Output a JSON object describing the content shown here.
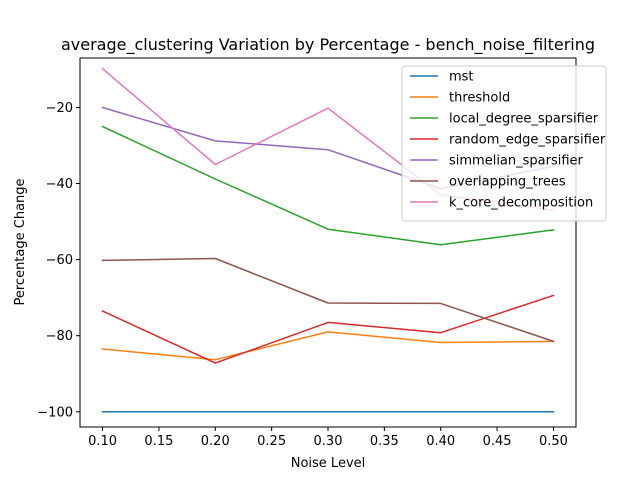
{
  "chart_data": {
    "type": "line",
    "title": "average_clustering Variation by Percentage - bench_noise_filtering",
    "xlabel": "Noise Level",
    "ylabel": "Percentage Change",
    "x": [
      0.1,
      0.2,
      0.3,
      0.4,
      0.5
    ],
    "xlim": [
      0.08,
      0.52
    ],
    "ylim": [
      -104,
      -7
    ],
    "xticks": [
      "0.10",
      "0.15",
      "0.20",
      "0.25",
      "0.30",
      "0.35",
      "0.40",
      "0.45",
      "0.50"
    ],
    "yticks": [
      "-100",
      "-80",
      "-60",
      "-40",
      "-20"
    ],
    "grid": false,
    "legend_position": "upper right",
    "series": [
      {
        "name": "mst",
        "color": "#1f77b4",
        "values": [
          -100,
          -100,
          -100,
          -100,
          -100
        ]
      },
      {
        "name": "threshold",
        "color": "#ff7f0e",
        "values": [
          -83.5,
          -86.3,
          -79.0,
          -81.8,
          -81.5
        ]
      },
      {
        "name": "local_degree_sparsifier",
        "color": "#2ca02c",
        "values": [
          -25.0,
          -38.8,
          -52.0,
          -56.1,
          -52.2
        ]
      },
      {
        "name": "random_edge_sparsifier",
        "color": "#d62728",
        "values": [
          -73.5,
          -87.2,
          -76.5,
          -79.2,
          -69.4
        ]
      },
      {
        "name": "simmelian_sparsifier",
        "color": "#9467bd",
        "values": [
          -20.0,
          -28.8,
          -31.1,
          -41.3,
          -35.5
        ]
      },
      {
        "name": "overlapping_trees",
        "color": "#8c564b",
        "values": [
          -60.2,
          -59.7,
          -71.4,
          -71.5,
          -81.5
        ]
      },
      {
        "name": "k_core_decomposition",
        "color": "#e377c2",
        "values": [
          -9.8,
          -35.0,
          -20.2,
          -43.0,
          -47.0
        ]
      }
    ]
  }
}
